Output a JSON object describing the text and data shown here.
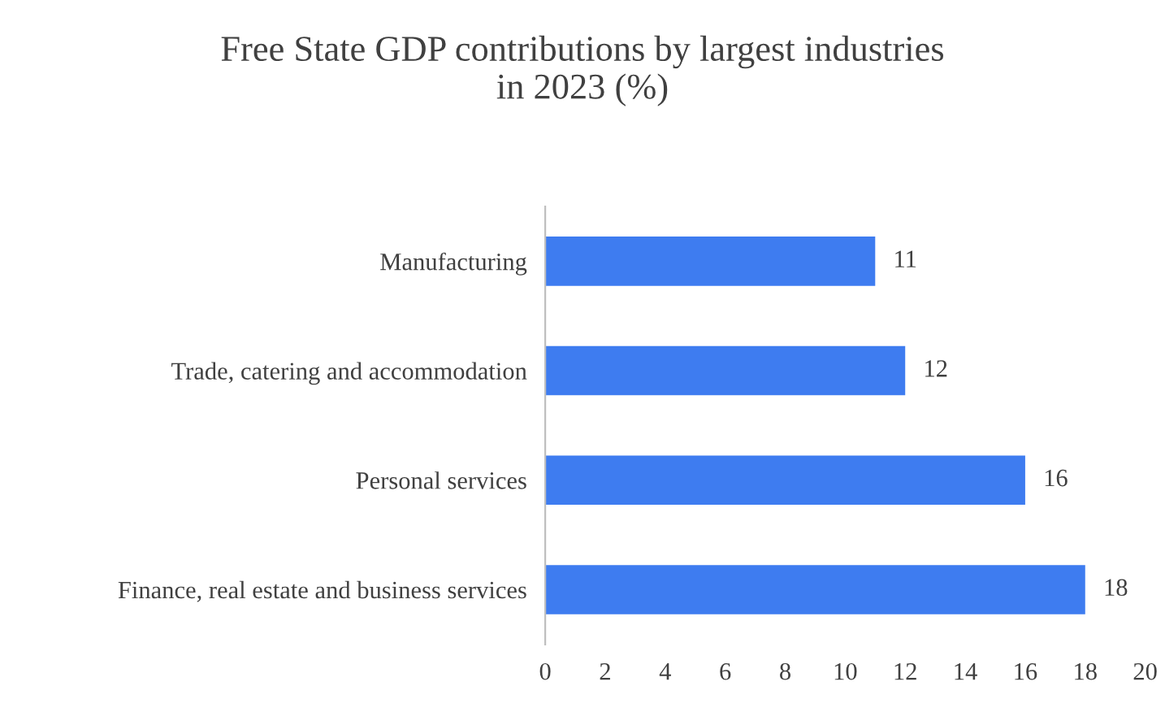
{
  "chart_data": {
    "type": "bar",
    "orientation": "horizontal",
    "title": "Free State GDP contributions by largest industries\nin 2023 (%)",
    "categories": [
      "Manufacturing",
      "Trade, catering and accommodation",
      "Personal services",
      "Finance, real estate and business services"
    ],
    "values": [
      11,
      12,
      16,
      18
    ],
    "color": "#3e7cf0",
    "data_labels": true,
    "grid": false,
    "legend": false,
    "xlim": [
      0,
      20
    ],
    "xticks": [
      0,
      2,
      4,
      6,
      8,
      10,
      12,
      14,
      16,
      18,
      20
    ]
  }
}
